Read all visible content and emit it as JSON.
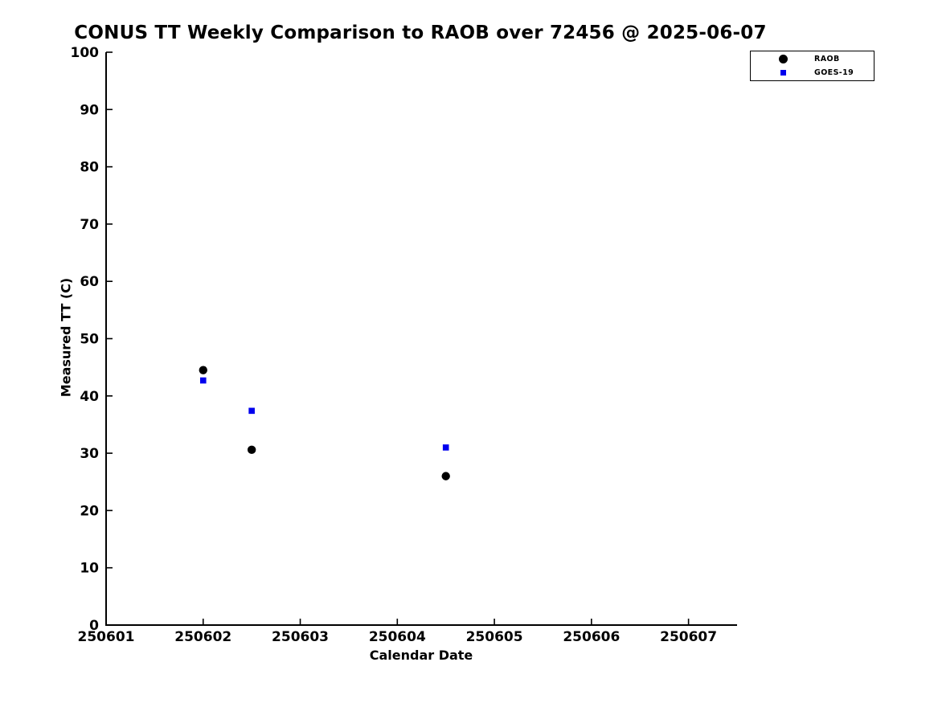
{
  "title": "CONUS TT Weekly Comparison to RAOB over 72456 @ 2025-06-07",
  "colors": {
    "raob": "#000000",
    "goes19": "#0000ee",
    "axis": "#000000",
    "background": "#ffffff"
  },
  "chart_data": {
    "type": "scatter",
    "title": "CONUS TT Weekly Comparison to RAOB over 72456 @ 2025-06-07",
    "xlabel": "Calendar Date",
    "ylabel": "Measured TT (C)",
    "xlim": [
      250601,
      250607.5
    ],
    "ylim": [
      0,
      100
    ],
    "x_ticks": [
      250601,
      250602,
      250603,
      250604,
      250605,
      250606,
      250607
    ],
    "y_ticks": [
      0,
      10,
      20,
      30,
      40,
      50,
      60,
      70,
      80,
      90,
      100
    ],
    "grid": false,
    "legend": {
      "position": "top-right",
      "entries": [
        "RAOB",
        "GOES-19"
      ]
    },
    "series": [
      {
        "name": "RAOB",
        "marker": "circle",
        "color": "#000000",
        "points": [
          [
            250602.0,
            44.5
          ],
          [
            250602.5,
            30.6
          ],
          [
            250604.5,
            26.0
          ]
        ]
      },
      {
        "name": "GOES-19",
        "marker": "square",
        "color": "#0000ee",
        "points": [
          [
            250602.0,
            42.7
          ],
          [
            250602.5,
            37.4
          ],
          [
            250604.5,
            31.0
          ]
        ]
      }
    ]
  }
}
